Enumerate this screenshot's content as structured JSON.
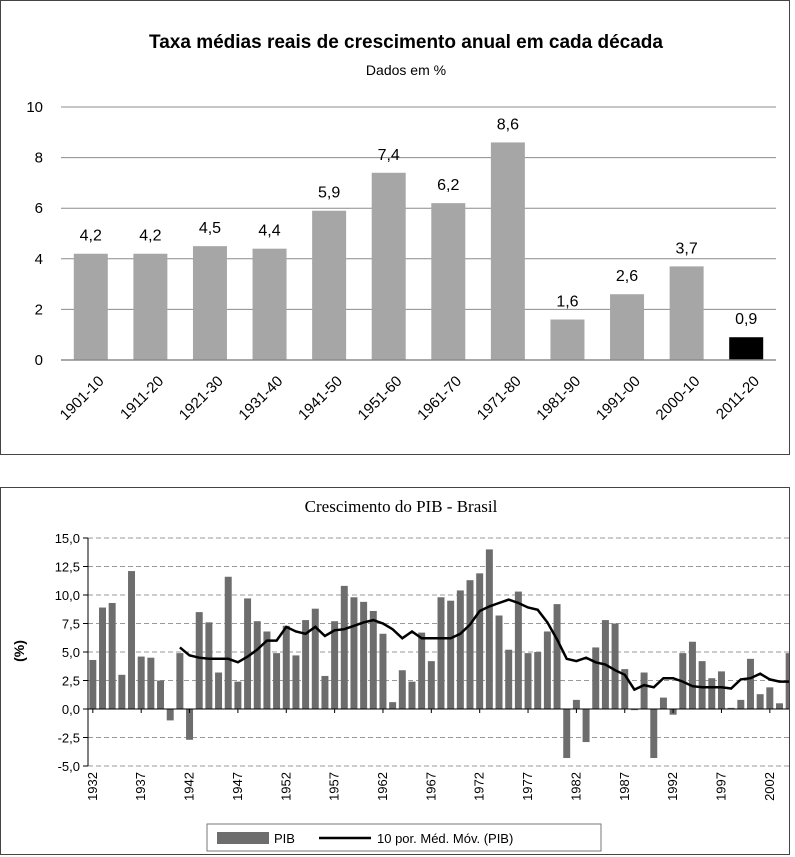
{
  "chart_data": [
    {
      "type": "bar",
      "title": "Taxa médias reais de crescimento anual em cada década",
      "subtitle": "Dados em %",
      "categories": [
        "1901-10",
        "1911-20",
        "1921-30",
        "1931-40",
        "1941-50",
        "1951-60",
        "1961-70",
        "1971-80",
        "1981-90",
        "1991-00",
        "2000-10",
        "2011-20"
      ],
      "values": [
        4.2,
        4.2,
        4.5,
        4.4,
        5.9,
        7.4,
        6.2,
        8.6,
        1.6,
        2.6,
        3.7,
        0.9
      ],
      "data_labels": [
        "4,2",
        "4,2",
        "4,5",
        "4,4",
        "5,9",
        "7,4",
        "6,2",
        "8,6",
        "1,6",
        "2,6",
        "3,7",
        "0,9"
      ],
      "ylim": [
        0,
        10
      ],
      "yticks": [
        "0",
        "2",
        "4",
        "6",
        "8",
        "10"
      ],
      "bar_color": "#a6a6a6",
      "highlight_color": "#000000",
      "highlight_index": 11,
      "grid": true
    },
    {
      "type": "bar",
      "title": "Crescimento do PIB - Brasil",
      "ylabel": "(%)",
      "x": [
        1932,
        1933,
        1934,
        1935,
        1936,
        1937,
        1938,
        1939,
        1940,
        1941,
        1942,
        1943,
        1944,
        1945,
        1946,
        1947,
        1948,
        1949,
        1950,
        1951,
        1952,
        1953,
        1954,
        1955,
        1956,
        1957,
        1958,
        1959,
        1960,
        1961,
        1962,
        1963,
        1964,
        1965,
        1966,
        1967,
        1968,
        1969,
        1970,
        1971,
        1972,
        1973,
        1974,
        1975,
        1976,
        1977,
        1978,
        1979,
        1980,
        1981,
        1982,
        1983,
        1984,
        1985,
        1986,
        1987,
        1988,
        1989,
        1990,
        1991,
        1992,
        1993,
        1994,
        1995,
        1996,
        1997,
        1998,
        1999,
        2000,
        2001,
        2002,
        2003,
        2004
      ],
      "xtick_labels": [
        "1932",
        "1937",
        "1942",
        "1947",
        "1952",
        "1957",
        "1962",
        "1967",
        "1972",
        "1977",
        "1982",
        "1987",
        "1992",
        "1997",
        "2002"
      ],
      "series": [
        {
          "name": "PIB",
          "type": "bar",
          "color": "#6d6d6d",
          "values": [
            4.3,
            8.9,
            9.3,
            3.0,
            12.1,
            4.6,
            4.5,
            2.5,
            -1.0,
            4.9,
            -2.7,
            8.5,
            7.6,
            3.2,
            11.6,
            2.4,
            9.7,
            7.7,
            6.8,
            4.9,
            7.3,
            4.7,
            7.8,
            8.8,
            2.9,
            7.7,
            10.8,
            9.8,
            9.4,
            8.6,
            6.6,
            0.6,
            3.4,
            2.4,
            6.7,
            4.2,
            9.8,
            9.5,
            10.4,
            11.3,
            11.9,
            14.0,
            8.2,
            5.2,
            10.3,
            4.9,
            5.0,
            6.8,
            9.2,
            -4.3,
            0.8,
            -2.9,
            5.4,
            7.8,
            7.5,
            3.5,
            -0.1,
            3.2,
            -4.3,
            1.0,
            -0.5,
            4.9,
            5.9,
            4.2,
            2.7,
            3.3,
            0.1,
            0.8,
            4.4,
            1.3,
            1.9,
            0.5,
            4.9
          ]
        },
        {
          "name": "10 por. Méd. Móv. (PIB)",
          "type": "line",
          "color": "#000000",
          "x": [
            1941,
            1942,
            1943,
            1944,
            1945,
            1946,
            1947,
            1948,
            1949,
            1950,
            1951,
            1952,
            1953,
            1954,
            1955,
            1956,
            1957,
            1958,
            1959,
            1960,
            1961,
            1962,
            1963,
            1964,
            1965,
            1966,
            1967,
            1968,
            1969,
            1970,
            1971,
            1972,
            1973,
            1974,
            1975,
            1976,
            1977,
            1978,
            1979,
            1980,
            1981,
            1982,
            1983,
            1984,
            1985,
            1986,
            1987,
            1988,
            1989,
            1990,
            1991,
            1992,
            1993,
            1994,
            1995,
            1996,
            1997,
            1998,
            1999,
            2000,
            2001,
            2002,
            2003,
            2004
          ],
          "values": [
            5.4,
            4.7,
            4.5,
            4.4,
            4.4,
            4.4,
            4.1,
            4.6,
            5.2,
            6.0,
            6.0,
            7.2,
            6.8,
            6.6,
            7.2,
            6.4,
            6.9,
            7.0,
            7.3,
            7.6,
            7.8,
            7.5,
            7.0,
            6.2,
            6.8,
            6.2,
            6.2,
            6.2,
            6.2,
            6.6,
            7.4,
            8.6,
            9.0,
            9.3,
            9.6,
            9.3,
            8.9,
            8.7,
            7.6,
            6.1,
            4.4,
            4.2,
            4.5,
            4.1,
            3.9,
            3.4,
            3.0,
            1.7,
            2.1,
            1.9,
            2.7,
            2.7,
            2.4,
            2.0,
            1.9,
            1.9,
            1.9,
            1.8,
            2.6,
            2.7,
            3.1,
            2.6,
            2.4,
            2.4
          ]
        }
      ],
      "ylim": [
        -5.0,
        15.0
      ],
      "yticks": [
        "-5,0",
        "-2,5",
        "0,0",
        "2,5",
        "5,0",
        "7,5",
        "10,0",
        "12,5",
        "15,0"
      ],
      "legend": "bottom"
    }
  ]
}
